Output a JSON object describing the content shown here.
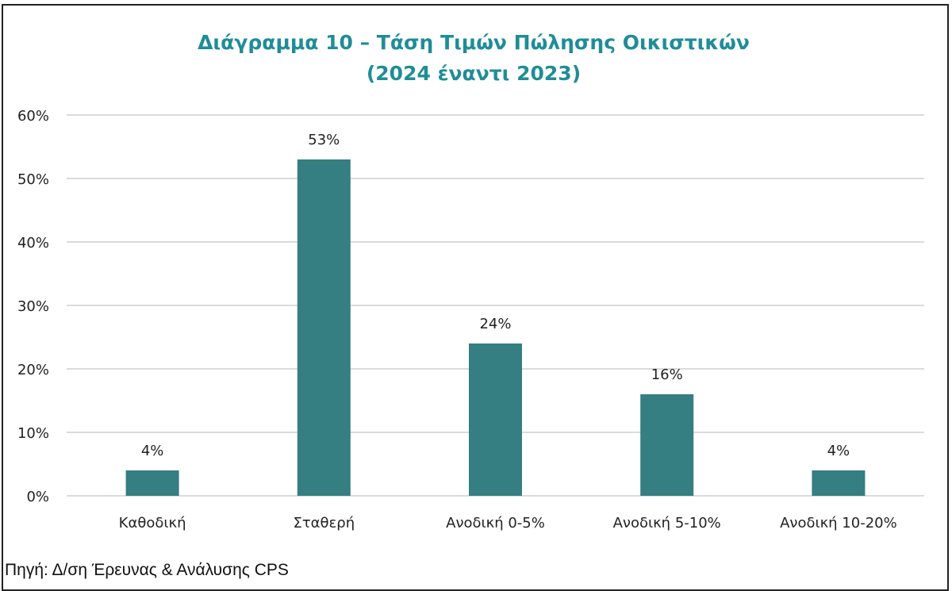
{
  "chart_data": {
    "type": "bar",
    "title_lines": [
      "Διάγραμμα 10 – Τάση Τιμών Πώλησης Οικιστικών",
      "(2024 έναντι 2023)"
    ],
    "categories": [
      "Καθοδική",
      "Σταθερή",
      "Ανοδική 0-5%",
      "Ανοδική 5-10%",
      "Ανοδική 10-20%"
    ],
    "values": [
      4,
      53,
      24,
      16,
      4
    ],
    "data_labels": [
      "4%",
      "53%",
      "24%",
      "16%",
      "4%"
    ],
    "y_ticks": [
      "0%",
      "10%",
      "20%",
      "30%",
      "40%",
      "50%",
      "60%"
    ],
    "ylim": [
      0,
      60
    ],
    "grid": true,
    "bar_color": "#357e82",
    "title_color": "#1f8d97"
  },
  "source": "Πηγή: Δ/ση Έρευνας & Ανάλυσης CPS"
}
